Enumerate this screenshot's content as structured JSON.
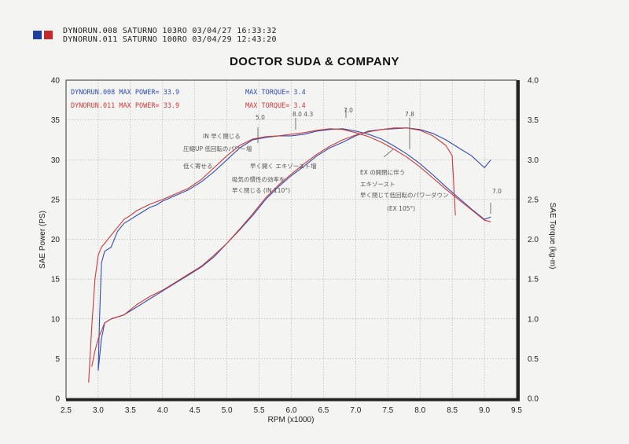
{
  "header": {
    "run1": "DYNORUN.008   SATURNO 103RO   03/04/27 16:33:32",
    "run2": "DYNORUN.011   SATURNO 100RO   03/04/29 12:43:20",
    "square_colors": [
      "#1e3f9e",
      "#c42a2a"
    ]
  },
  "title": "DOCTOR SUDA & COMPANY",
  "legend": {
    "run1_power": "DYNORUN.008  MAX POWER= 33.9",
    "run2_power": "DYNORUN.011  MAX POWER= 33.9",
    "run1_torque": "MAX TORQUE= 3.4",
    "run2_torque": "MAX TORQUE= 3.4"
  },
  "annotations": {
    "a1": "IN  早く閉じる",
    "a2": "圧縮UP  低回転のパワー増",
    "a3": "低く寄せる",
    "a4": "早く開く エキゾースト増",
    "a5": "吸気の慣性の効率を",
    "a6": "早く閉じる (IN 110°)",
    "a7": "EX の開閉に伴う",
    "a8": "エキゾースト",
    "a9": "早く閉じて低回転のパワーダウン",
    "a10": "(EX 105°)",
    "a11": "5.0",
    "a12": "8.0 4.3",
    "a13": "7.0",
    "a14": "7.8",
    "a15": "7.0"
  },
  "colors": {
    "run1": "#2f4fb0",
    "run2": "#cc3a3a",
    "grid": "#9a9a9a"
  },
  "chart_data": {
    "type": "line",
    "xlabel": "RPM (x1000)",
    "ylabel": "SAE Power (PS)",
    "y2label": "SAE Torque (kg-m)",
    "xlim": [
      2.5,
      9.5
    ],
    "ylim": [
      0,
      40
    ],
    "y2lim": [
      0.0,
      4.0
    ],
    "xticks": [
      "2.5",
      "3.0",
      "3.5",
      "4.0",
      "4.5",
      "5.0",
      "5.5",
      "6.0",
      "6.5",
      "7.0",
      "7.5",
      "8.0",
      "8.5",
      "9.0",
      "9.5"
    ],
    "yticks": [
      "0",
      "5",
      "10",
      "15",
      "20",
      "25",
      "30",
      "35",
      "40"
    ],
    "y2ticks": [
      "0.0",
      "0.5",
      "1.0",
      "1.5",
      "2.0",
      "2.5",
      "3.0",
      "3.5",
      "4.0"
    ],
    "grid": true,
    "series": [
      {
        "name": "DYNORUN.008",
        "kind": "power",
        "axis": "left",
        "x": [
          3.0,
          3.02,
          3.05,
          3.1,
          3.2,
          3.3,
          3.4,
          3.5,
          3.6,
          3.7,
          3.8,
          3.9,
          4.0,
          4.2,
          4.4,
          4.6,
          4.8,
          5.0,
          5.2,
          5.4,
          5.6,
          5.8,
          6.0,
          6.2,
          6.4,
          6.6,
          6.8,
          7.0,
          7.2,
          7.4,
          7.6,
          7.8,
          8.0,
          8.2,
          8.4,
          8.6,
          8.8,
          9.0,
          9.1
        ],
        "values": [
          3.5,
          10.0,
          17.0,
          18.5,
          19.0,
          21.0,
          22.0,
          22.5,
          23.0,
          23.5,
          24.0,
          24.3,
          24.8,
          25.5,
          26.2,
          27.2,
          28.5,
          30.0,
          31.5,
          32.5,
          32.8,
          33.0,
          33.0,
          33.2,
          33.6,
          33.8,
          33.9,
          33.6,
          33.2,
          32.6,
          31.7,
          30.7,
          29.5,
          28.1,
          26.6,
          25.2,
          23.8,
          22.5,
          22.8
        ]
      },
      {
        "name": "DYNORUN.011",
        "kind": "power",
        "axis": "left",
        "x": [
          2.85,
          2.9,
          2.95,
          3.0,
          3.05,
          3.1,
          3.2,
          3.3,
          3.4,
          3.5,
          3.6,
          3.7,
          3.8,
          3.9,
          4.0,
          4.2,
          4.4,
          4.6,
          4.8,
          5.0,
          5.2,
          5.4,
          5.6,
          5.8,
          6.0,
          6.2,
          6.4,
          6.6,
          6.8,
          7.0,
          7.2,
          7.4,
          7.6,
          7.8,
          8.0,
          8.2,
          8.4,
          8.6,
          8.8,
          9.0,
          9.1
        ],
        "values": [
          2.0,
          9.0,
          15.0,
          18.0,
          19.0,
          19.5,
          20.5,
          21.5,
          22.5,
          23.0,
          23.6,
          24.0,
          24.4,
          24.7,
          25.0,
          25.7,
          26.4,
          27.5,
          29.0,
          30.5,
          31.8,
          32.6,
          32.9,
          33.0,
          33.2,
          33.4,
          33.7,
          33.9,
          33.8,
          33.4,
          32.9,
          32.2,
          31.3,
          30.3,
          29.1,
          27.7,
          26.3,
          25.0,
          23.7,
          22.4,
          22.2
        ]
      },
      {
        "name": "DYNORUN.008",
        "kind": "torque",
        "axis": "right",
        "x": [
          3.0,
          3.05,
          3.1,
          3.2,
          3.4,
          3.6,
          3.8,
          4.0,
          4.2,
          4.4,
          4.6,
          4.8,
          5.0,
          5.2,
          5.4,
          5.6,
          5.8,
          6.0,
          6.2,
          6.4,
          6.6,
          6.8,
          7.0,
          7.2,
          7.4,
          7.6,
          7.8,
          8.0,
          8.2,
          8.4,
          8.6,
          8.8,
          9.0,
          9.1
        ],
        "values": [
          0.35,
          0.75,
          0.95,
          1.0,
          1.05,
          1.15,
          1.25,
          1.35,
          1.45,
          1.55,
          1.65,
          1.78,
          1.95,
          2.12,
          2.3,
          2.5,
          2.66,
          2.8,
          2.92,
          3.05,
          3.15,
          3.22,
          3.3,
          3.36,
          3.38,
          3.39,
          3.4,
          3.38,
          3.33,
          3.25,
          3.15,
          3.05,
          2.9,
          3.0
        ]
      },
      {
        "name": "DYNORUN.011",
        "kind": "torque",
        "axis": "right",
        "x": [
          2.9,
          2.95,
          3.0,
          3.1,
          3.2,
          3.4,
          3.6,
          3.8,
          4.0,
          4.2,
          4.4,
          4.6,
          4.8,
          5.0,
          5.2,
          5.4,
          5.6,
          5.8,
          6.0,
          6.2,
          6.4,
          6.6,
          6.8,
          7.0,
          7.2,
          7.4,
          7.6,
          7.8,
          8.0,
          8.2,
          8.4,
          8.5,
          8.55
        ],
        "values": [
          0.4,
          0.6,
          0.75,
          0.95,
          1.0,
          1.05,
          1.18,
          1.28,
          1.36,
          1.46,
          1.56,
          1.66,
          1.8,
          1.95,
          2.13,
          2.32,
          2.52,
          2.68,
          2.82,
          2.95,
          3.07,
          3.17,
          3.25,
          3.31,
          3.35,
          3.38,
          3.4,
          3.4,
          3.37,
          3.3,
          3.18,
          3.05,
          2.3
        ]
      }
    ]
  }
}
